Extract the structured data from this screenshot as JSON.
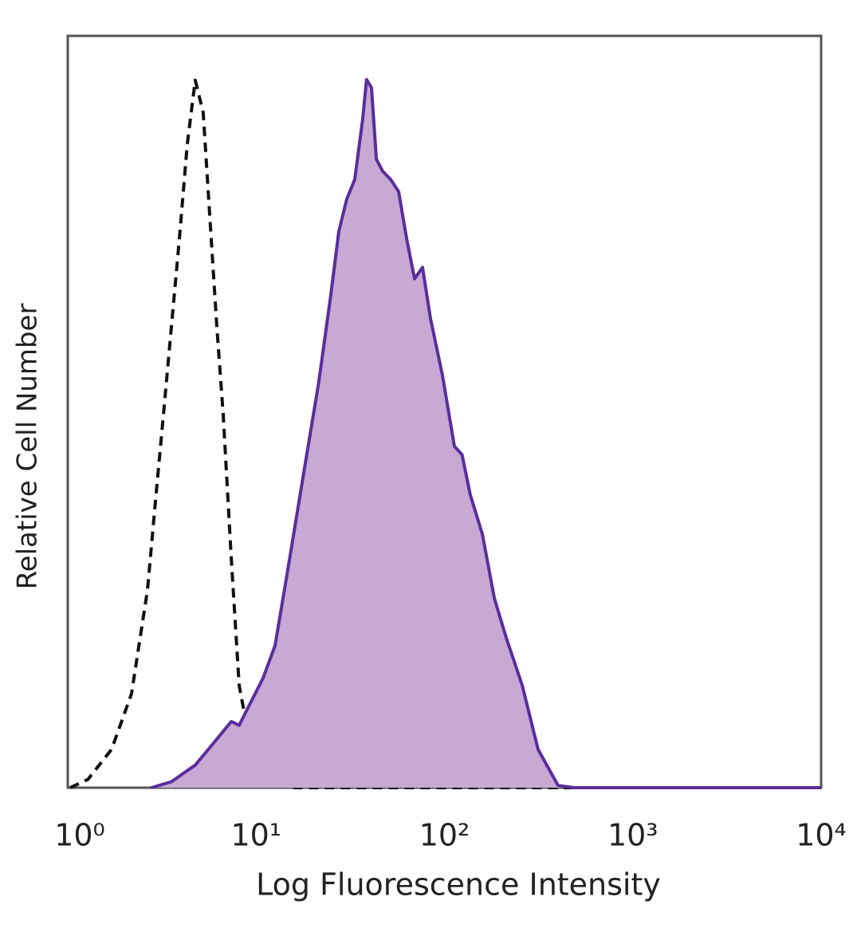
{
  "chart_data": {
    "type": "histogram-overlay",
    "xlabel": "Log Fluorescence Intensity",
    "ylabel": "Relative Cell Number",
    "xscale": "log",
    "xlim": [
      1,
      10000
    ],
    "xticks": [
      {
        "value": 1,
        "label": "10⁰"
      },
      {
        "value": 10,
        "label": "10¹"
      },
      {
        "value": 100,
        "label": "10²"
      },
      {
        "value": 1000,
        "label": "10³"
      },
      {
        "value": 10000,
        "label": "10⁴"
      }
    ],
    "ylim": [
      0,
      100
    ],
    "series": [
      {
        "color": "#111111",
        "line_style": "dashed",
        "fill": null,
        "x": [
          1.03,
          1.28,
          1.71,
          2.18,
          2.65,
          2.92,
          3.22,
          3.55,
          3.91,
          4.31,
          4.75,
          5.24,
          5.78,
          6.19,
          6.69,
          7.38,
          8.13,
          9.41,
          12.0,
          16.1,
          10000
        ],
        "values": [
          0,
          1.1,
          5.1,
          12.5,
          26.3,
          38.0,
          49.6,
          61.3,
          72.9,
          85.6,
          94.1,
          89.8,
          72.9,
          61.3,
          49.6,
          30.5,
          13.6,
          5.1,
          0.8,
          0,
          0
        ]
      },
      {
        "color": "#5b2d9c",
        "line_style": "solid",
        "fill": "#c7a9d4",
        "x": [
          2.78,
          3.55,
          4.75,
          6.07,
          7.38,
          8.13,
          8.96,
          10.9,
          12.6,
          14.6,
          17.7,
          21.5,
          24.9,
          27.5,
          30.3,
          33.4,
          36.8,
          38.6,
          41.0,
          43.5,
          47.0,
          51.8,
          57.1,
          63.0,
          69.4,
          76.5,
          84.3,
          97.5,
          113,
          124,
          137,
          159,
          184,
          213,
          259,
          314,
          401,
          488,
          10000
        ],
        "values": [
          0,
          0.8,
          3.0,
          6.2,
          8.8,
          8.3,
          10.4,
          14.6,
          18.9,
          28.4,
          41.1,
          53.9,
          65.5,
          74.0,
          78.3,
          80.9,
          88.9,
          94.2,
          93.1,
          83.6,
          82.0,
          80.9,
          79.3,
          73.0,
          67.7,
          69.2,
          62.4,
          54.9,
          45.4,
          44.3,
          39.0,
          33.7,
          25.2,
          19.9,
          13.6,
          5.1,
          0.3,
          0,
          0
        ]
      }
    ]
  }
}
